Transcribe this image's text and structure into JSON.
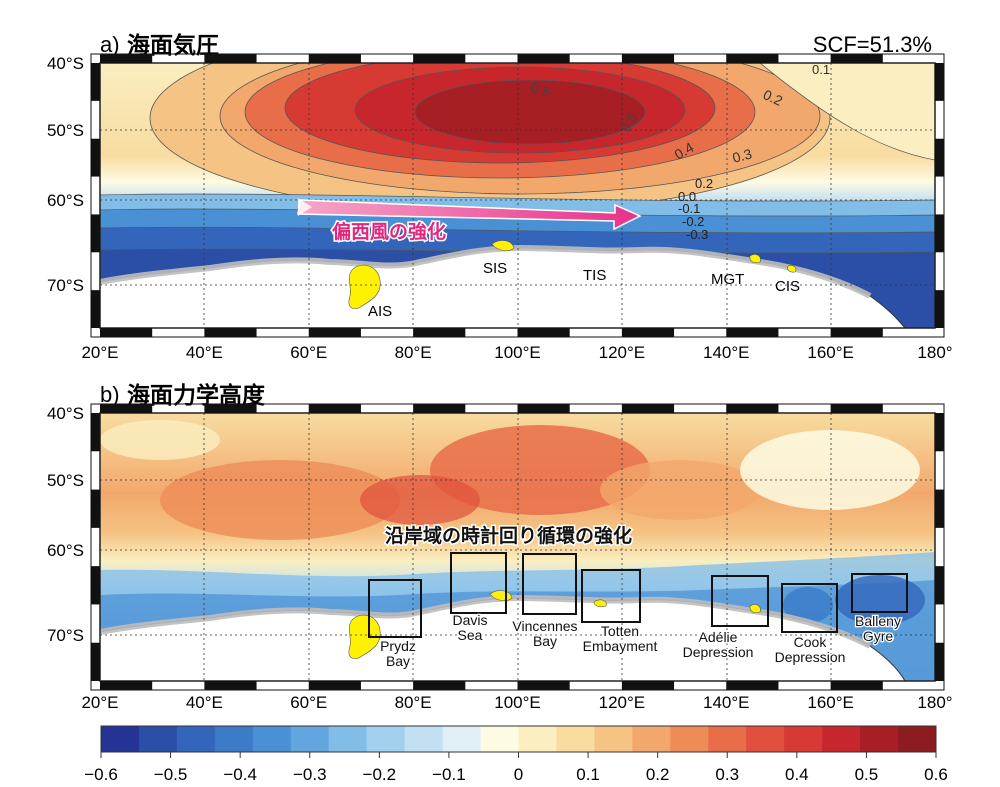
{
  "panel_a": {
    "label": "a)",
    "title": "海面気圧",
    "scf": "SCF=51.3%",
    "annotation": "偏西風の強化",
    "contour_labels": [
      "0.6",
      "0.5",
      "0.4",
      "0.3",
      "0.2",
      "0.1",
      "0.2",
      "0.0",
      "-0.1",
      "-0.2",
      "-0.3"
    ],
    "places": [
      "AIS",
      "SIS",
      "TIS",
      "MGT",
      "CIS"
    ]
  },
  "panel_b": {
    "label": "b)",
    "title": "海面力学高度",
    "annotation": "沿岸域の時計回り循環の強化",
    "regions": [
      {
        "name": [
          "Prydz",
          "Bay"
        ]
      },
      {
        "name": [
          "Davis",
          "Sea"
        ]
      },
      {
        "name": [
          "Vincennes",
          "Bay"
        ]
      },
      {
        "name": [
          "Totten",
          "Embayment"
        ]
      },
      {
        "name": [
          "Adélie",
          "Depression"
        ]
      },
      {
        "name": [
          "Cook",
          "Depression"
        ]
      },
      {
        "name": [
          "Balleny",
          "Gyre"
        ]
      }
    ]
  },
  "axes": {
    "lat_ticks": [
      "40°S",
      "50°S",
      "60°S",
      "70°S"
    ],
    "lon_ticks": [
      "20°E",
      "40°E",
      "60°E",
      "80°E",
      "100°E",
      "120°E",
      "140°E",
      "160°E",
      "180°"
    ]
  },
  "colorbar": {
    "ticks": [
      "−0.6",
      "−0.5",
      "−0.4",
      "−0.3",
      "−0.2",
      "−0.1",
      "0",
      "0.1",
      "0.2",
      "0.3",
      "0.4",
      "0.5",
      "0.6"
    ],
    "colors": [
      "#253494",
      "#2b4fa6",
      "#3366bb",
      "#3b7bc8",
      "#4a90d4",
      "#63a6df",
      "#82bde8",
      "#a3d0ee",
      "#c3e0f2",
      "#e0eef6",
      "#fdfbe3",
      "#fbeec0",
      "#f8dca0",
      "#f5c384",
      "#f2a86c",
      "#ee8c58",
      "#e86e4a",
      "#e0503c",
      "#d73a33",
      "#c7272c",
      "#a71e24",
      "#8c1c20"
    ]
  }
}
